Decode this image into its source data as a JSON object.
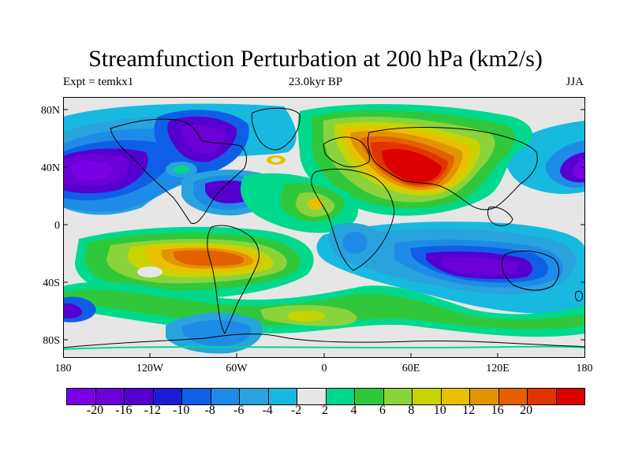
{
  "header": {
    "title": "Streamfunction Perturbation at 200 hPa (km2/s)",
    "left_subtitle": "Expt = temkx1",
    "center_subtitle": "23.0kyr BP",
    "right_subtitle": "JJA"
  },
  "axes": {
    "lat_labels": [
      "80N",
      "40N",
      "0",
      "40S",
      "80S"
    ],
    "lon_labels": [
      "180",
      "120W",
      "60W",
      "0",
      "60E",
      "120E",
      "180"
    ]
  },
  "colorbar": {
    "colors": [
      "#7a00e6",
      "#6b00d6",
      "#5500cf",
      "#1c1cd6",
      "#0f5fe6",
      "#1e8ce6",
      "#29a3dd",
      "#18b9e0",
      "#e6e6e6",
      "#00d98c",
      "#30c83a",
      "#8bd33a",
      "#c8d400",
      "#e8c000",
      "#e29400",
      "#e46000",
      "#e13400",
      "#dc0000"
    ],
    "labels": [
      "-20",
      "-16",
      "-12",
      "-10",
      "-8",
      "-6",
      "-4",
      "-2",
      "2",
      "4",
      "6",
      "8",
      "10",
      "12",
      "16",
      "20"
    ]
  },
  "map_features": {
    "coastlines": [
      "North America",
      "South America",
      "Greenland",
      "Europe",
      "Africa",
      "Asia",
      "Australia",
      "Antarctica"
    ]
  }
}
